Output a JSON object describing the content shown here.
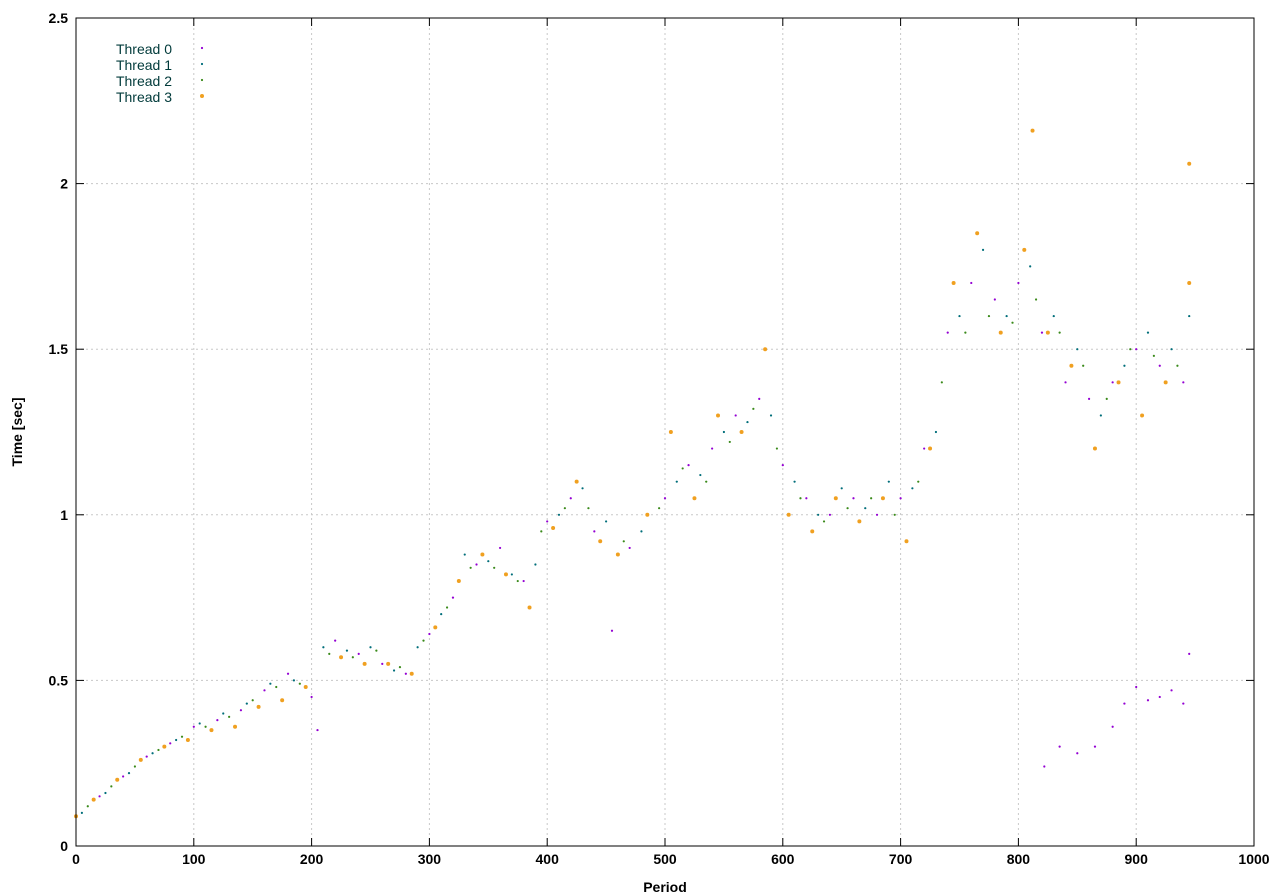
{
  "chart_data": {
    "type": "scatter",
    "title": "",
    "xlabel": "Period",
    "ylabel": "Time [sec]",
    "xlim": [
      0,
      1000
    ],
    "ylim": [
      0,
      2.5
    ],
    "x_ticks": [
      0,
      100,
      200,
      300,
      400,
      500,
      600,
      700,
      800,
      900,
      1000
    ],
    "y_ticks": [
      0,
      0.5,
      1,
      1.5,
      2,
      2.5
    ],
    "x_tick_labels": [
      "0",
      "100",
      "200",
      "300",
      "400",
      "500",
      "600",
      "700",
      "800",
      "900",
      "1000"
    ],
    "y_tick_labels": [
      "0",
      "0.5",
      "1",
      "1.5",
      "2",
      "2.5"
    ],
    "grid": true,
    "legend_position": "top-left",
    "series": [
      {
        "name": "Thread 0",
        "color": "#9400d3",
        "marker": "dot",
        "points": [
          [
            0,
            0.09
          ],
          [
            20,
            0.15
          ],
          [
            40,
            0.21
          ],
          [
            60,
            0.27
          ],
          [
            80,
            0.31
          ],
          [
            100,
            0.36
          ],
          [
            120,
            0.38
          ],
          [
            140,
            0.41
          ],
          [
            160,
            0.47
          ],
          [
            180,
            0.52
          ],
          [
            200,
            0.45
          ],
          [
            205,
            0.35
          ],
          [
            220,
            0.62
          ],
          [
            240,
            0.58
          ],
          [
            260,
            0.55
          ],
          [
            280,
            0.52
          ],
          [
            300,
            0.64
          ],
          [
            320,
            0.75
          ],
          [
            340,
            0.85
          ],
          [
            360,
            0.9
          ],
          [
            380,
            0.8
          ],
          [
            400,
            0.98
          ],
          [
            420,
            1.05
          ],
          [
            440,
            0.95
          ],
          [
            455,
            0.65
          ],
          [
            470,
            0.9
          ],
          [
            500,
            1.05
          ],
          [
            520,
            1.15
          ],
          [
            540,
            1.2
          ],
          [
            560,
            1.3
          ],
          [
            580,
            1.35
          ],
          [
            600,
            1.15
          ],
          [
            620,
            1.05
          ],
          [
            640,
            1.0
          ],
          [
            660,
            1.05
          ],
          [
            680,
            1.0
          ],
          [
            700,
            1.05
          ],
          [
            720,
            1.2
          ],
          [
            740,
            1.55
          ],
          [
            760,
            1.7
          ],
          [
            780,
            1.65
          ],
          [
            800,
            1.7
          ],
          [
            820,
            1.55
          ],
          [
            840,
            1.4
          ],
          [
            860,
            1.35
          ],
          [
            880,
            1.4
          ],
          [
            900,
            1.5
          ],
          [
            920,
            1.45
          ],
          [
            940,
            1.4
          ],
          [
            822,
            0.24
          ],
          [
            835,
            0.3
          ],
          [
            850,
            0.28
          ],
          [
            865,
            0.3
          ],
          [
            880,
            0.36
          ],
          [
            890,
            0.43
          ],
          [
            900,
            0.48
          ],
          [
            910,
            0.44
          ],
          [
            920,
            0.45
          ],
          [
            930,
            0.47
          ],
          [
            940,
            0.43
          ],
          [
            945,
            0.58
          ]
        ]
      },
      {
        "name": "Thread 1",
        "color": "#006e7a",
        "marker": "dot",
        "points": [
          [
            5,
            0.1
          ],
          [
            25,
            0.16
          ],
          [
            45,
            0.22
          ],
          [
            65,
            0.28
          ],
          [
            85,
            0.32
          ],
          [
            105,
            0.37
          ],
          [
            125,
            0.4
          ],
          [
            145,
            0.43
          ],
          [
            165,
            0.49
          ],
          [
            185,
            0.5
          ],
          [
            210,
            0.6
          ],
          [
            230,
            0.59
          ],
          [
            250,
            0.6
          ],
          [
            270,
            0.53
          ],
          [
            290,
            0.6
          ],
          [
            310,
            0.7
          ],
          [
            330,
            0.88
          ],
          [
            350,
            0.86
          ],
          [
            370,
            0.82
          ],
          [
            390,
            0.85
          ],
          [
            410,
            1.0
          ],
          [
            430,
            1.08
          ],
          [
            450,
            0.98
          ],
          [
            480,
            0.95
          ],
          [
            510,
            1.1
          ],
          [
            530,
            1.12
          ],
          [
            550,
            1.25
          ],
          [
            570,
            1.28
          ],
          [
            590,
            1.3
          ],
          [
            610,
            1.1
          ],
          [
            630,
            1.0
          ],
          [
            650,
            1.08
          ],
          [
            670,
            1.02
          ],
          [
            690,
            1.1
          ],
          [
            710,
            1.08
          ],
          [
            730,
            1.25
          ],
          [
            750,
            1.6
          ],
          [
            770,
            1.8
          ],
          [
            790,
            1.6
          ],
          [
            810,
            1.75
          ],
          [
            830,
            1.6
          ],
          [
            850,
            1.5
          ],
          [
            870,
            1.3
          ],
          [
            890,
            1.45
          ],
          [
            910,
            1.55
          ],
          [
            930,
            1.5
          ],
          [
            945,
            1.6
          ]
        ]
      },
      {
        "name": "Thread 2",
        "color": "#3a8a1a",
        "marker": "dot",
        "points": [
          [
            10,
            0.12
          ],
          [
            30,
            0.18
          ],
          [
            50,
            0.24
          ],
          [
            70,
            0.29
          ],
          [
            90,
            0.33
          ],
          [
            110,
            0.36
          ],
          [
            130,
            0.39
          ],
          [
            150,
            0.44
          ],
          [
            170,
            0.48
          ],
          [
            190,
            0.49
          ],
          [
            215,
            0.58
          ],
          [
            235,
            0.57
          ],
          [
            255,
            0.59
          ],
          [
            275,
            0.54
          ],
          [
            295,
            0.62
          ],
          [
            315,
            0.72
          ],
          [
            335,
            0.84
          ],
          [
            355,
            0.84
          ],
          [
            375,
            0.8
          ],
          [
            395,
            0.95
          ],
          [
            415,
            1.02
          ],
          [
            435,
            1.02
          ],
          [
            465,
            0.92
          ],
          [
            495,
            1.02
          ],
          [
            515,
            1.14
          ],
          [
            535,
            1.1
          ],
          [
            555,
            1.22
          ],
          [
            575,
            1.32
          ],
          [
            595,
            1.2
          ],
          [
            615,
            1.05
          ],
          [
            635,
            0.98
          ],
          [
            655,
            1.02
          ],
          [
            675,
            1.05
          ],
          [
            695,
            1.0
          ],
          [
            715,
            1.1
          ],
          [
            735,
            1.4
          ],
          [
            755,
            1.55
          ],
          [
            775,
            1.6
          ],
          [
            795,
            1.58
          ],
          [
            815,
            1.65
          ],
          [
            835,
            1.55
          ],
          [
            855,
            1.45
          ],
          [
            875,
            1.35
          ],
          [
            895,
            1.5
          ],
          [
            915,
            1.48
          ],
          [
            935,
            1.45
          ]
        ]
      },
      {
        "name": "Thread 3",
        "color": "#f0a020",
        "marker": "filled-circle",
        "points": [
          [
            0,
            0.09
          ],
          [
            15,
            0.14
          ],
          [
            35,
            0.2
          ],
          [
            55,
            0.26
          ],
          [
            75,
            0.3
          ],
          [
            95,
            0.32
          ],
          [
            115,
            0.35
          ],
          [
            135,
            0.36
          ],
          [
            155,
            0.42
          ],
          [
            175,
            0.44
          ],
          [
            195,
            0.48
          ],
          [
            225,
            0.57
          ],
          [
            245,
            0.55
          ],
          [
            265,
            0.55
          ],
          [
            285,
            0.52
          ],
          [
            305,
            0.66
          ],
          [
            325,
            0.8
          ],
          [
            345,
            0.88
          ],
          [
            365,
            0.82
          ],
          [
            385,
            0.72
          ],
          [
            405,
            0.96
          ],
          [
            425,
            1.1
          ],
          [
            445,
            0.92
          ],
          [
            460,
            0.88
          ],
          [
            485,
            1.0
          ],
          [
            505,
            1.25
          ],
          [
            525,
            1.05
          ],
          [
            545,
            1.3
          ],
          [
            565,
            1.25
          ],
          [
            585,
            1.5
          ],
          [
            605,
            1.0
          ],
          [
            625,
            0.95
          ],
          [
            645,
            1.05
          ],
          [
            665,
            0.98
          ],
          [
            685,
            1.05
          ],
          [
            705,
            0.92
          ],
          [
            725,
            1.2
          ],
          [
            745,
            1.7
          ],
          [
            765,
            1.85
          ],
          [
            785,
            1.55
          ],
          [
            805,
            1.8
          ],
          [
            812,
            2.16
          ],
          [
            825,
            1.55
          ],
          [
            845,
            1.45
          ],
          [
            865,
            1.2
          ],
          [
            885,
            1.4
          ],
          [
            905,
            1.3
          ],
          [
            925,
            1.4
          ],
          [
            945,
            2.06
          ],
          [
            945,
            1.7
          ]
        ]
      }
    ]
  }
}
